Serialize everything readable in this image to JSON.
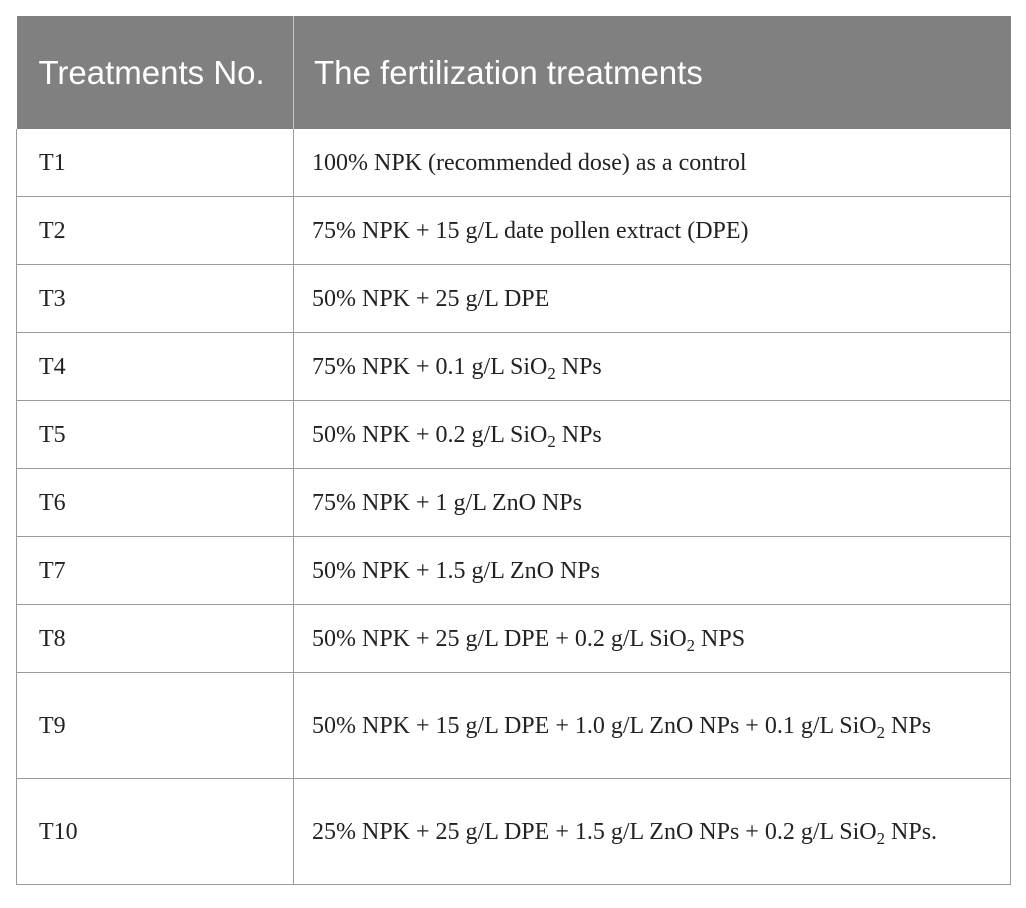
{
  "table": {
    "headers": [
      "Treatments No.",
      "The fertilization treatments"
    ],
    "rows": [
      {
        "no": "T1",
        "treatment": "100% NPK (recommended dose) as a control"
      },
      {
        "no": "T2",
        "treatment": "75% NPK + 15 g/L date pollen extract (DPE)"
      },
      {
        "no": "T3",
        "treatment": "50% NPK + 25 g/L DPE"
      },
      {
        "no": "T4",
        "treatment": "75% NPK + 0.1 g/L SiO2 NPs"
      },
      {
        "no": "T5",
        "treatment": "50% NPK + 0.2 g/L SiO2 NPs"
      },
      {
        "no": "T6",
        "treatment": "75% NPK + 1 g/L ZnO NPs"
      },
      {
        "no": "T7",
        "treatment": "50% NPK + 1.5 g/L ZnO NPs"
      },
      {
        "no": "T8",
        "treatment": "50% NPK + 25 g/L DPE + 0.2 g/L SiO2 NPS"
      },
      {
        "no": "T9",
        "treatment": "50% NPK + 15 g/L DPE + 1.0 g/L ZnO NPs + 0.1 g/L SiO2 NPs"
      },
      {
        "no": "T10",
        "treatment": "25% NPK + 25 g/L DPE + 1.5 g/L ZnO NPs + 0.2 g/L SiO2 NPs."
      }
    ]
  }
}
